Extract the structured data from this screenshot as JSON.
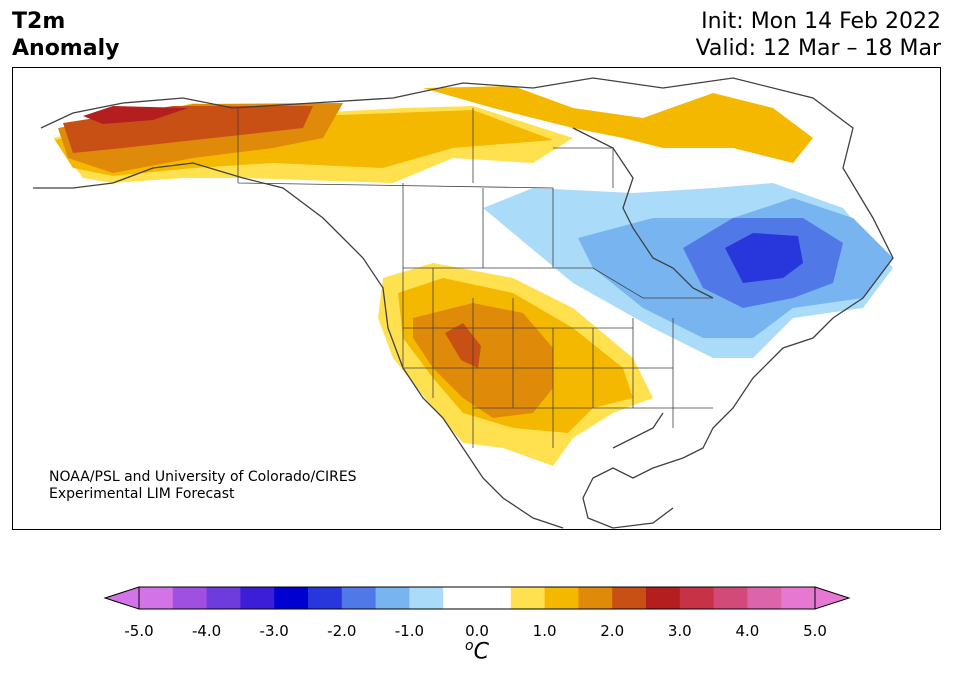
{
  "title": {
    "line1": "T2m",
    "line2": "Anomaly"
  },
  "dates": {
    "init": "Init: Mon 14 Feb 2022",
    "valid": "Valid: 12 Mar – 18 Mar"
  },
  "credit": {
    "line1": "NOAA/PSL and University of Colorado/CIRES",
    "line2": "Experimental LIM Forecast"
  },
  "colorbar": {
    "unit_base": "C",
    "unit_sup": "o",
    "ticks": [
      "-5.0",
      "-4.0",
      "-3.0",
      "-2.0",
      "-1.0",
      "0.0",
      "1.0",
      "2.0",
      "3.0",
      "4.0",
      "5.0"
    ],
    "colors": [
      "#d273e8",
      "#a050e0",
      "#6e3cdc",
      "#3c1ed8",
      "#0000d0",
      "#2837dc",
      "#5078e6",
      "#78b4f0",
      "#aadcfa",
      "#ffffff",
      "#ffffff",
      "#ffe150",
      "#f5b800",
      "#e08a0a",
      "#c85014",
      "#b41e1e",
      "#c83246",
      "#d24b78",
      "#dc64aa",
      "#e678d2"
    ],
    "over_color": "#e678d2",
    "under_color": "#d273e8"
  }
}
